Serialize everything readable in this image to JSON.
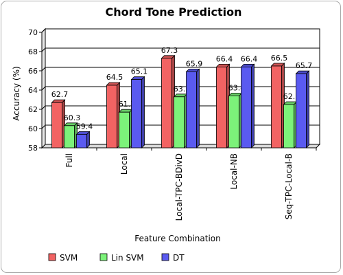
{
  "chart_data": {
    "type": "bar",
    "title": "Chord Tone Prediction",
    "xlabel": "Feature Combination",
    "ylabel": "Accuracy (%)",
    "ylim": [
      58,
      70
    ],
    "yticks": [
      58,
      60,
      62,
      64,
      66,
      68,
      70
    ],
    "grid": true,
    "legend_position": "bottom-left",
    "categories": [
      "Full",
      "Local",
      "Local-TPC-BDivD",
      "Local-NB",
      "Seq-TPC-Local-B"
    ],
    "series": [
      {
        "name": "SVM",
        "color": "#f26363",
        "values": [
          62.7,
          64.5,
          67.3,
          66.4,
          66.5
        ]
      },
      {
        "name": "Lin SVM",
        "color": "#7cf27a",
        "values": [
          60.3,
          61.7,
          63.3,
          63.4,
          62.5
        ]
      },
      {
        "name": "DT",
        "color": "#5a5af0",
        "values": [
          59.4,
          65.1,
          65.9,
          66.4,
          65.7
        ]
      }
    ]
  }
}
